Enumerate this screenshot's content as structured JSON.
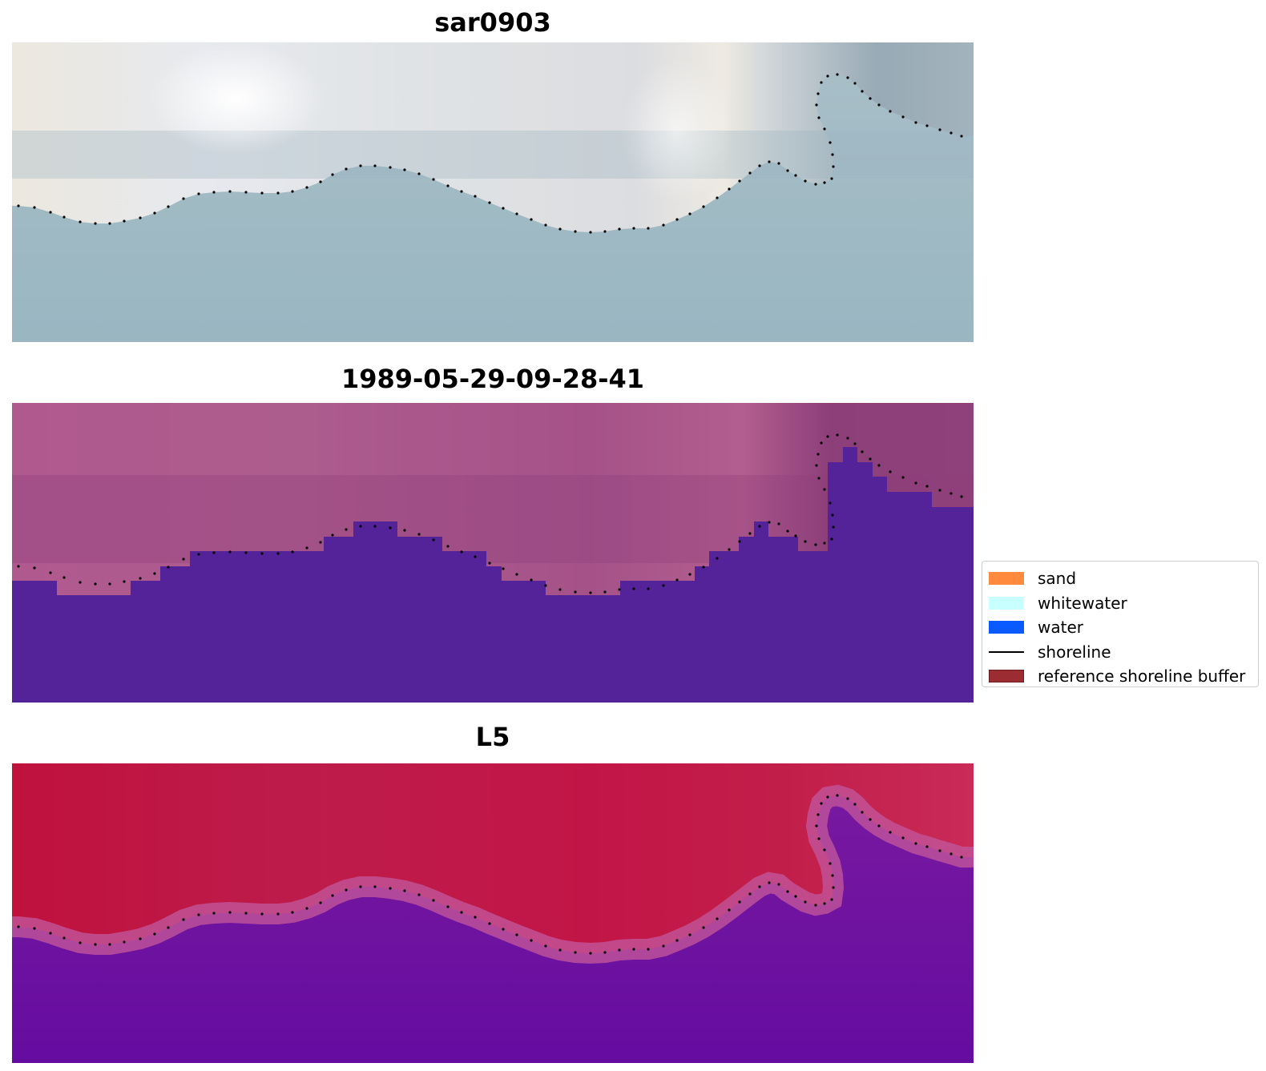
{
  "panels": [
    {
      "id": "rgb",
      "title": "sar0903"
    },
    {
      "id": "classification",
      "title": "1989-05-29-09-28-41"
    },
    {
      "id": "mndwi",
      "title": "L5"
    }
  ],
  "legend": {
    "items": [
      {
        "label": "sand",
        "color": "#ff8a3d",
        "kind": "patch"
      },
      {
        "label": "whitewater",
        "color": "#c8ffff",
        "kind": "patch"
      },
      {
        "label": "water",
        "color": "#0a5bff",
        "kind": "patch"
      },
      {
        "label": "shoreline",
        "color": "#000000",
        "kind": "line"
      },
      {
        "label": "reference shoreline buffer",
        "color": "#9b2c32",
        "kind": "patch"
      }
    ]
  },
  "colors": {
    "rgb_water": "#a3bcc6",
    "rgb_land": "#dfe3e8",
    "class_land": "#a64f86",
    "class_water": "#54239a",
    "mndwi_land": "#c31b49",
    "mndwi_water": "#6a0fa0",
    "shoreline_dots": "#000000"
  }
}
